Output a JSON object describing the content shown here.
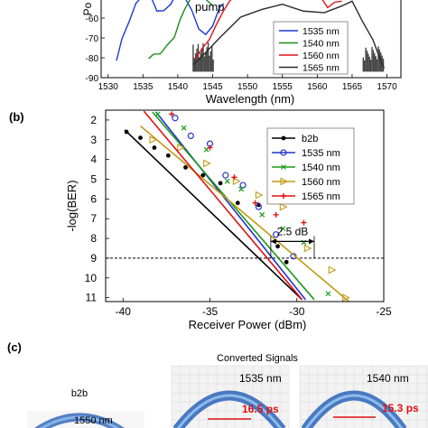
{
  "panel_b_label": "(b)",
  "panel_c_label": "(c)",
  "chart_data": [
    {
      "type": "line",
      "panel": "a",
      "xlabel": "Wavelength (nm)",
      "ylabel": "Po",
      "xlim": [
        1529,
        1572
      ],
      "ylim": [
        -90,
        -50
      ],
      "x_ticks": [
        1530,
        1535,
        1540,
        1545,
        1550,
        1555,
        1560,
        1565,
        1570
      ],
      "y_ticks": [
        -60,
        -70,
        -80,
        -90
      ],
      "annotation": "pump",
      "legend_position": "right",
      "series": [
        {
          "name": "1535 nm",
          "color": "#1a3ad6",
          "x": [
            1531.2,
            1532,
            1533,
            1534,
            1535,
            1536,
            1537,
            1538,
            1539,
            1540,
            1541,
            1542,
            1543,
            1544,
            1545,
            1546,
            1546.6
          ],
          "y": [
            -81,
            -71,
            -61,
            -53,
            -48,
            -49,
            -56,
            -57,
            -52,
            -47,
            -49,
            -57,
            -65,
            -69,
            -63,
            -55,
            -52
          ]
        },
        {
          "name": "1540 nm",
          "color": "#1a8c1a",
          "x": [
            1535.8,
            1536.5,
            1537.5,
            1538.5,
            1539.5,
            1540.3,
            1541,
            1542,
            1543,
            1544,
            1545
          ],
          "y": [
            -80,
            -79,
            -77,
            -74,
            -69,
            -62,
            -55,
            -50,
            -49,
            -51,
            -53
          ]
        },
        {
          "name": "1560 nm",
          "color": "#e01414",
          "x": [
            1542.5,
            1543.5,
            1544.5,
            1545.5,
            1546.5,
            1547.5,
            1548.5,
            1549.5,
            1550.5,
            1552,
            1553.5,
            1555,
            1556.5,
            1558,
            1559.5,
            1560.5,
            1561.5,
            1562.5,
            1563.5
          ],
          "y": [
            -80,
            -76,
            -70,
            -64,
            -56,
            -52,
            -49,
            -47,
            -46,
            -47,
            -48,
            -49,
            -50,
            -50,
            -49,
            -50,
            -54,
            -53,
            -51
          ]
        },
        {
          "name": "1565 nm",
          "color": "#2a2a2a",
          "x": [
            1542.2,
            1543.5,
            1546,
            1549,
            1552,
            1555,
            1558,
            1561,
            1563.5,
            1565,
            1566.5,
            1568,
            1569,
            1569.6
          ],
          "y": [
            -83,
            -80,
            -69,
            -60,
            -55,
            -54,
            -56,
            -58,
            -53,
            -52,
            -61,
            -72,
            -80,
            -86
          ]
        }
      ]
    },
    {
      "type": "scatter",
      "panel": "b",
      "xlabel": "Receiver Power (dBm)",
      "ylabel": "-log(BER)",
      "xlim": [
        -41,
        -25
      ],
      "ylim": [
        1.5,
        11.2
      ],
      "y_inverted": true,
      "x_ticks": [
        -40,
        -35,
        -30,
        -25
      ],
      "y_ticks": [
        2,
        3,
        4,
        5,
        6,
        7,
        8,
        9,
        10,
        11
      ],
      "threshold_y": 9,
      "penalty_annotation": "2.5 dB",
      "penalty_x": [
        -31.5,
        -29.0
      ],
      "penalty_y": 8.15,
      "legend_position": "top-right",
      "series": [
        {
          "name": "b2b",
          "color": "#000000",
          "marker": "dot",
          "x": [
            -39.8,
            -39,
            -38.2,
            -37.4,
            -36.4,
            -35.4,
            -34.4,
            -33.4,
            -32.2,
            -31.1,
            -30.6
          ],
          "y": [
            2.6,
            2.9,
            3.4,
            3.8,
            4.4,
            4.8,
            5.2,
            6.2,
            6.3,
            8.4,
            9.2
          ],
          "fit": [
            [
              -39.9,
              2.5
            ],
            [
              -29.7,
              11.1
            ]
          ]
        },
        {
          "name": "1535 nm",
          "color": "#2233cc",
          "marker": "circle",
          "x": [
            -37,
            -36.1,
            -35,
            -34.1,
            -33.1,
            -32.2,
            -31.2,
            -30.2
          ],
          "y": [
            1.9,
            2.8,
            3.2,
            4.8,
            5.3,
            6.4,
            7.8,
            8.9
          ],
          "fit": [
            [
              -38.1,
              1.6
            ],
            [
              -29.5,
              11.1
            ]
          ]
        },
        {
          "name": "1540 nm",
          "color": "#1a9a1a",
          "marker": "x",
          "x": [
            -38,
            -36.5,
            -35.2,
            -34,
            -33.2,
            -32,
            -30.8,
            -29.6,
            -28.2
          ],
          "y": [
            1.7,
            2.4,
            3.5,
            5.1,
            5.5,
            6.8,
            7.5,
            8.2,
            10.8
          ],
          "fit": [
            [
              -38.3,
              1.6
            ],
            [
              -29.0,
              11.1
            ]
          ]
        },
        {
          "name": "1560 nm",
          "color": "#c19a16",
          "marker": "triangle",
          "x": [
            -38.3,
            -36.7,
            -35.2,
            -33.5,
            -32.2,
            -30.8,
            -29.4,
            -28,
            -27.2
          ],
          "y": [
            3.0,
            3.4,
            4.2,
            5.1,
            5.8,
            6.4,
            8.5,
            9.6,
            11.0
          ],
          "fit": [
            [
              -39.0,
              2.3
            ],
            [
              -27.0,
              11.2
            ]
          ]
        },
        {
          "name": "1565 nm",
          "color": "#e01010",
          "marker": "plus",
          "x": [
            -37.2,
            -35,
            -33.6,
            -32.4,
            -31.2,
            -30.4,
            -29.6
          ],
          "y": [
            1.7,
            3.4,
            4.9,
            6.2,
            6.8,
            6.0,
            7.2
          ],
          "fit": [
            [
              -38.8,
              1.55
            ],
            [
              -29.7,
              11.1
            ]
          ]
        }
      ]
    }
  ],
  "eyes": {
    "title": "Converted Signals",
    "b2b_label": "b2b",
    "b2b_wavelength": "1550 nm",
    "eye1_label": "1535 nm",
    "eye1_width": "16.5 ps",
    "eye2_label": "1540 nm",
    "eye2_width": "15.3 ps"
  }
}
